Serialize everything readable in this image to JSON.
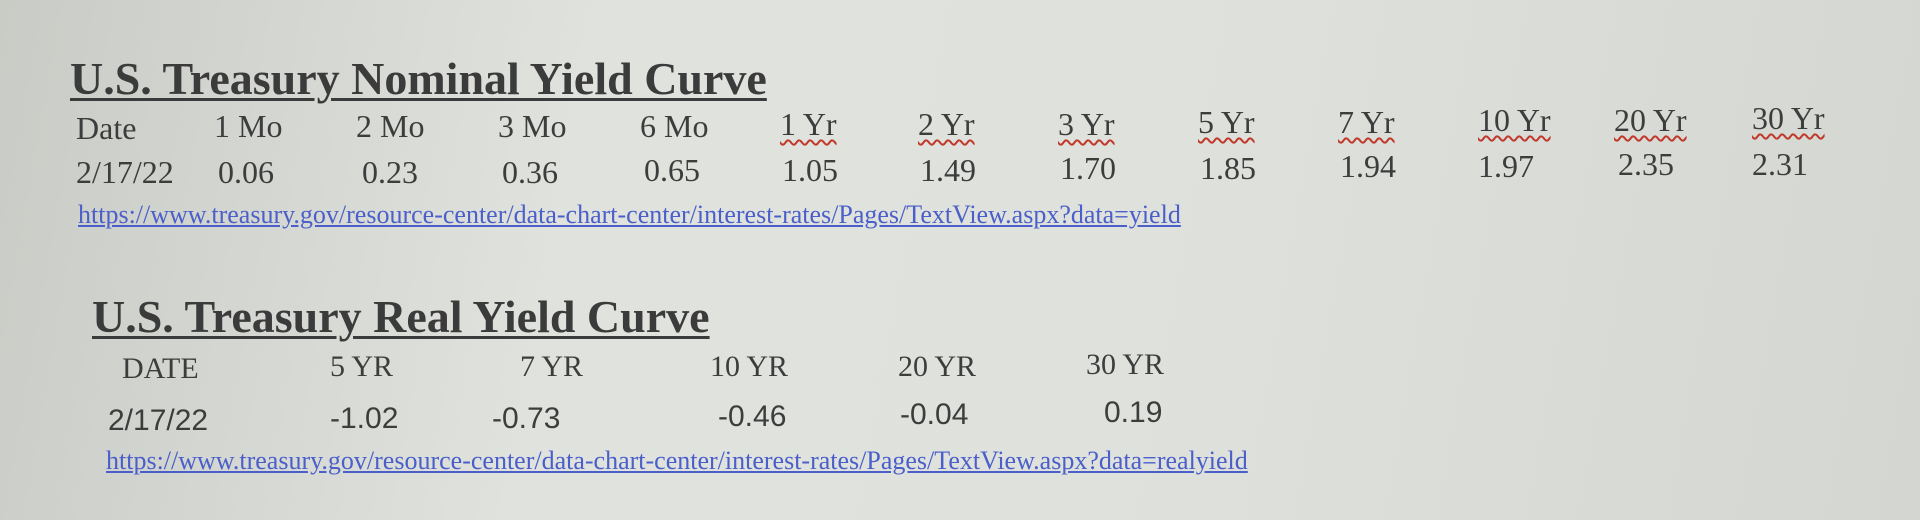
{
  "nominal": {
    "title": "U.S. Treasury Nominal Yield Curve",
    "headers": [
      "Date",
      "1 Mo",
      "2 Mo",
      "3 Mo",
      "6 Mo",
      "1 Yr",
      "2 Yr",
      "3 Yr",
      "5 Yr",
      "7 Yr",
      "10 Yr",
      "20 Yr",
      "30 Yr"
    ],
    "row": [
      "2/17/22",
      "0.06",
      "0.23",
      "0.36",
      "0.65",
      "1.05",
      "1.49",
      "1.70",
      "1.85",
      "1.94",
      "1.97",
      "2.35",
      "2.31"
    ],
    "link": "https://www.treasury.gov/resource-center/data-chart-center/interest-rates/Pages/TextView.aspx?data=yield"
  },
  "real": {
    "title": "U.S. Treasury Real Yield Curve",
    "headers": [
      "DATE",
      "5 YR",
      "7 YR",
      "10 YR",
      "20 YR",
      "30 YR"
    ],
    "row": [
      "2/17/22",
      "-1.02",
      "-0.73",
      "-0.46",
      "-0.04",
      "0.19"
    ],
    "link": "https://www.treasury.gov/resource-center/data-chart-center/interest-rates/Pages/TextView.aspx?data=realyield"
  },
  "colors": {
    "link": "#4a5fc9",
    "text": "#3d3d3d",
    "spellcheck_underline": "#c0392b"
  }
}
